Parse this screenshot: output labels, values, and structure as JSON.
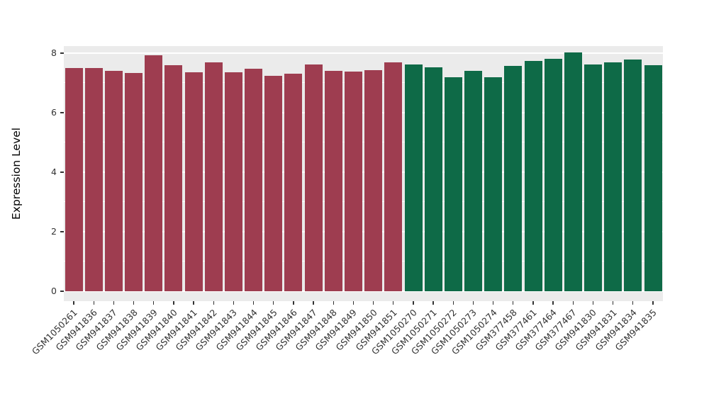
{
  "chart_data": {
    "type": "bar",
    "title": "",
    "ylabel": "Expression Level",
    "xlabel": "",
    "ylim": [
      0,
      8.3
    ],
    "yticks": [
      0,
      2,
      4,
      6,
      8
    ],
    "yticks_minor": [
      1,
      3,
      5,
      7
    ],
    "legend": "none",
    "grid": "on",
    "panel_background": "#ebebeb",
    "gridline_color": "#ffffff",
    "axis_text_color": "#333333",
    "groups": {
      "group1": "#9e3d50",
      "group2": "#0e6a47"
    },
    "bars": [
      {
        "label": "GSM1050261",
        "value": 7.5,
        "group": "group1"
      },
      {
        "label": "GSM941836",
        "value": 7.5,
        "group": "group1"
      },
      {
        "label": "GSM941837",
        "value": 7.4,
        "group": "group1"
      },
      {
        "label": "GSM941838",
        "value": 7.33,
        "group": "group1"
      },
      {
        "label": "GSM941839",
        "value": 7.93,
        "group": "group1"
      },
      {
        "label": "GSM941840",
        "value": 7.6,
        "group": "group1"
      },
      {
        "label": "GSM941841",
        "value": 7.35,
        "group": "group1"
      },
      {
        "label": "GSM941842",
        "value": 7.68,
        "group": "group1"
      },
      {
        "label": "GSM941843",
        "value": 7.35,
        "group": "group1"
      },
      {
        "label": "GSM941844",
        "value": 7.47,
        "group": "group1"
      },
      {
        "label": "GSM941845",
        "value": 7.25,
        "group": "group1"
      },
      {
        "label": "GSM941846",
        "value": 7.32,
        "group": "group1"
      },
      {
        "label": "GSM941847",
        "value": 7.62,
        "group": "group1"
      },
      {
        "label": "GSM941848",
        "value": 7.4,
        "group": "group1"
      },
      {
        "label": "GSM941849",
        "value": 7.38,
        "group": "group1"
      },
      {
        "label": "GSM941850",
        "value": 7.43,
        "group": "group1"
      },
      {
        "label": "GSM941851",
        "value": 7.7,
        "group": "group1"
      },
      {
        "label": "GSM1050270",
        "value": 7.63,
        "group": "group2"
      },
      {
        "label": "GSM1050271",
        "value": 7.53,
        "group": "group2"
      },
      {
        "label": "GSM1050272",
        "value": 7.2,
        "group": "group2"
      },
      {
        "label": "GSM1050273",
        "value": 7.4,
        "group": "group2"
      },
      {
        "label": "GSM1050274",
        "value": 7.18,
        "group": "group2"
      },
      {
        "label": "GSM377458",
        "value": 7.57,
        "group": "group2"
      },
      {
        "label": "GSM377461",
        "value": 7.73,
        "group": "group2"
      },
      {
        "label": "GSM377464",
        "value": 7.8,
        "group": "group2"
      },
      {
        "label": "GSM377467",
        "value": 8.03,
        "group": "group2"
      },
      {
        "label": "GSM941830",
        "value": 7.62,
        "group": "group2"
      },
      {
        "label": "GSM941831",
        "value": 7.68,
        "group": "group2"
      },
      {
        "label": "GSM941834",
        "value": 7.78,
        "group": "group2"
      },
      {
        "label": "GSM941835",
        "value": 7.6,
        "group": "group2"
      }
    ]
  }
}
